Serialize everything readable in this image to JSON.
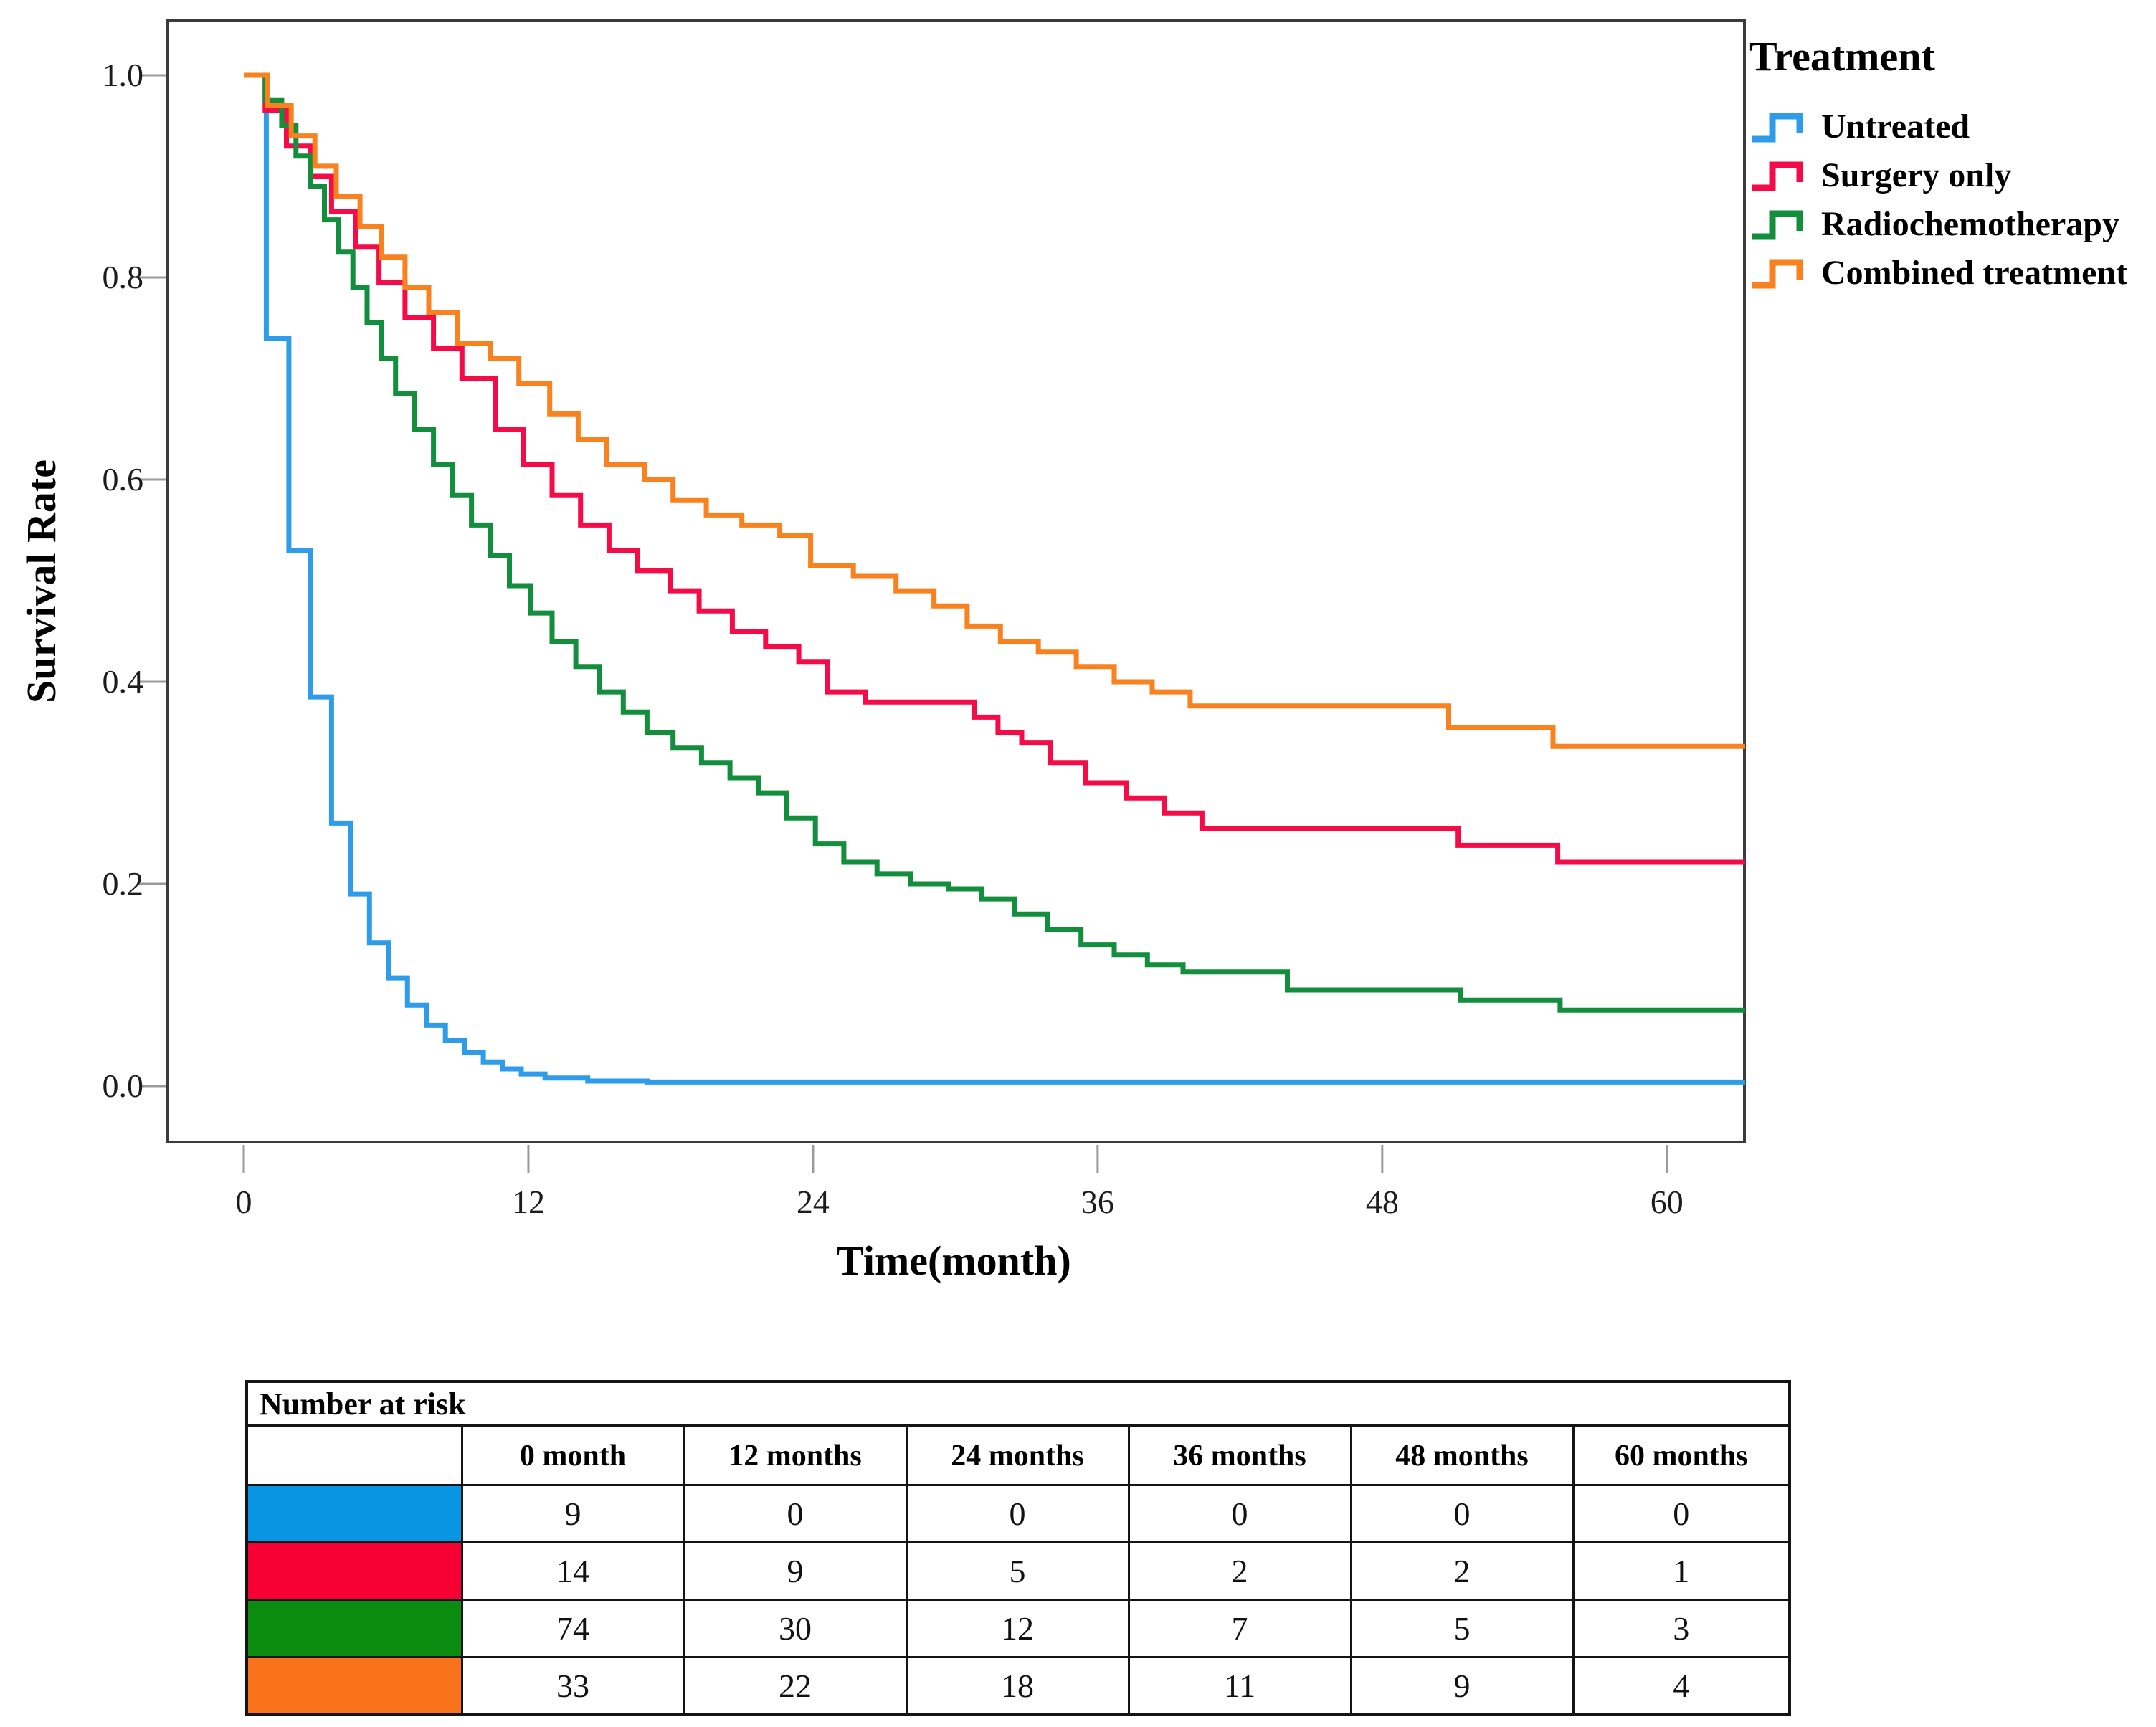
{
  "chart_data": {
    "type": "line",
    "subtype": "kaplan-meier-step-survival",
    "title": "",
    "xlabel": "Time(month)",
    "ylabel": "Survival Rate",
    "xlim": [
      -3.3,
      63.3
    ],
    "ylim": [
      -0.06,
      1.06
    ],
    "x_ticks": [
      0,
      12,
      24,
      36,
      48,
      60
    ],
    "y_ticks": [
      1.0,
      0.8,
      0.6,
      0.4,
      0.2,
      0.0
    ],
    "y_tick_labels": [
      "1.0",
      "0.8",
      "0.6",
      "0.4",
      "0.2",
      "0.0"
    ],
    "x_tick_labels": [
      "0",
      "12",
      "24",
      "36",
      "48",
      "60"
    ],
    "grid": false,
    "legend_title": "Treatment",
    "legend_position": "outside-top-right",
    "series": [
      {
        "name": "Untreated",
        "slug": "untreated",
        "color": "#2F9CE9",
        "steps": [
          [
            0,
            1.0
          ],
          [
            0.95,
            0.74
          ],
          [
            1.9,
            0.53
          ],
          [
            2.8,
            0.385
          ],
          [
            3.7,
            0.26
          ],
          [
            4.5,
            0.19
          ],
          [
            5.3,
            0.142
          ],
          [
            6.1,
            0.107
          ],
          [
            6.9,
            0.08
          ],
          [
            7.7,
            0.06
          ],
          [
            8.5,
            0.045
          ],
          [
            9.3,
            0.033
          ],
          [
            10.1,
            0.024
          ],
          [
            10.9,
            0.017
          ],
          [
            11.7,
            0.012
          ],
          [
            12.7,
            0.008
          ],
          [
            14.5,
            0.005
          ],
          [
            17.0,
            0.004
          ],
          [
            63.3,
            0.004
          ]
        ]
      },
      {
        "name": "Surgery only",
        "slug": "surgery-only",
        "color": "#F30C47",
        "steps": [
          [
            0,
            1.0
          ],
          [
            0.9,
            0.965
          ],
          [
            1.8,
            0.93
          ],
          [
            2.8,
            0.9
          ],
          [
            3.7,
            0.865
          ],
          [
            4.7,
            0.83
          ],
          [
            5.7,
            0.795
          ],
          [
            6.8,
            0.76
          ],
          [
            8.0,
            0.73
          ],
          [
            9.2,
            0.7
          ],
          [
            10.6,
            0.65
          ],
          [
            11.8,
            0.615
          ],
          [
            13.0,
            0.585
          ],
          [
            14.2,
            0.555
          ],
          [
            15.4,
            0.53
          ],
          [
            16.6,
            0.51
          ],
          [
            18.0,
            0.49
          ],
          [
            19.2,
            0.47
          ],
          [
            20.6,
            0.45
          ],
          [
            22.0,
            0.435
          ],
          [
            23.4,
            0.42
          ],
          [
            24.6,
            0.39
          ],
          [
            26.2,
            0.38
          ],
          [
            30.8,
            0.365
          ],
          [
            31.8,
            0.35
          ],
          [
            32.8,
            0.34
          ],
          [
            34.0,
            0.32
          ],
          [
            35.5,
            0.3
          ],
          [
            37.2,
            0.285
          ],
          [
            38.8,
            0.27
          ],
          [
            40.4,
            0.255
          ],
          [
            51.2,
            0.238
          ],
          [
            55.4,
            0.222
          ],
          [
            63.3,
            0.222
          ]
        ]
      },
      {
        "name": "Radiochemotherapy",
        "slug": "radiochemotherapy",
        "color": "#128E3C",
        "steps": [
          [
            0,
            1.0
          ],
          [
            0.9,
            0.975
          ],
          [
            1.6,
            0.95
          ],
          [
            2.2,
            0.92
          ],
          [
            2.8,
            0.89
          ],
          [
            3.4,
            0.857
          ],
          [
            4.0,
            0.825
          ],
          [
            4.6,
            0.79
          ],
          [
            5.2,
            0.755
          ],
          [
            5.8,
            0.72
          ],
          [
            6.4,
            0.685
          ],
          [
            7.2,
            0.65
          ],
          [
            8.0,
            0.615
          ],
          [
            8.8,
            0.585
          ],
          [
            9.6,
            0.555
          ],
          [
            10.4,
            0.525
          ],
          [
            11.2,
            0.495
          ],
          [
            12.1,
            0.468
          ],
          [
            13.0,
            0.44
          ],
          [
            14.0,
            0.415
          ],
          [
            15.0,
            0.39
          ],
          [
            16.0,
            0.37
          ],
          [
            17.0,
            0.35
          ],
          [
            18.1,
            0.335
          ],
          [
            19.3,
            0.32
          ],
          [
            20.5,
            0.305
          ],
          [
            21.7,
            0.29
          ],
          [
            22.9,
            0.265
          ],
          [
            24.1,
            0.24
          ],
          [
            25.3,
            0.222
          ],
          [
            26.7,
            0.21
          ],
          [
            28.1,
            0.2
          ],
          [
            29.7,
            0.195
          ],
          [
            31.1,
            0.185
          ],
          [
            32.5,
            0.17
          ],
          [
            33.9,
            0.155
          ],
          [
            35.3,
            0.14
          ],
          [
            36.7,
            0.13
          ],
          [
            38.1,
            0.12
          ],
          [
            39.6,
            0.113
          ],
          [
            44.0,
            0.095
          ],
          [
            51.3,
            0.085
          ],
          [
            55.5,
            0.075
          ],
          [
            63.3,
            0.075
          ]
        ]
      },
      {
        "name": "Combined treatment",
        "slug": "combined-treatment",
        "color": "#F8821F",
        "steps": [
          [
            0,
            1.0
          ],
          [
            1.0,
            0.97
          ],
          [
            2.0,
            0.94
          ],
          [
            3.0,
            0.91
          ],
          [
            3.9,
            0.88
          ],
          [
            4.9,
            0.85
          ],
          [
            5.8,
            0.82
          ],
          [
            6.8,
            0.79
          ],
          [
            7.8,
            0.765
          ],
          [
            9.0,
            0.735
          ],
          [
            10.4,
            0.72
          ],
          [
            11.6,
            0.695
          ],
          [
            12.9,
            0.665
          ],
          [
            14.1,
            0.64
          ],
          [
            15.3,
            0.615
          ],
          [
            16.9,
            0.6
          ],
          [
            18.1,
            0.58
          ],
          [
            19.5,
            0.565
          ],
          [
            21.0,
            0.555
          ],
          [
            22.6,
            0.545
          ],
          [
            23.9,
            0.515
          ],
          [
            25.7,
            0.505
          ],
          [
            27.5,
            0.49
          ],
          [
            29.1,
            0.475
          ],
          [
            30.5,
            0.455
          ],
          [
            31.9,
            0.44
          ],
          [
            33.5,
            0.43
          ],
          [
            35.1,
            0.415
          ],
          [
            36.7,
            0.4
          ],
          [
            38.3,
            0.39
          ],
          [
            39.9,
            0.376
          ],
          [
            50.8,
            0.355
          ],
          [
            55.2,
            0.336
          ],
          [
            63.3,
            0.336
          ]
        ]
      }
    ]
  },
  "legend": {
    "title": "Treatment",
    "items": [
      {
        "label": "Untreated",
        "color": "#2F9CE9"
      },
      {
        "label": "Surgery only",
        "color": "#F30C47"
      },
      {
        "label": "Radiochemotherapy",
        "color": "#128E3C"
      },
      {
        "label": "Combined treatment",
        "color": "#F8821F"
      }
    ]
  },
  "risk_table": {
    "title": "Number at risk",
    "columns": [
      "",
      "0 month",
      "12 months",
      "24 months",
      "36 months",
      "48 months",
      "60 months"
    ],
    "rows": [
      {
        "group": "Untreated",
        "slug": "untreated",
        "swatch_color": "#0895E2",
        "values": [
          "9",
          "0",
          "0",
          "0",
          "0",
          "0"
        ]
      },
      {
        "group": "Surgery only",
        "slug": "surgery-only",
        "swatch_color": "#F70033",
        "values": [
          "14",
          "9",
          "5",
          "2",
          "2",
          "1"
        ]
      },
      {
        "group": "Radiochemotherapy",
        "slug": "radiochemotherapy",
        "swatch_color": "#0B8B10",
        "values": [
          "74",
          "30",
          "12",
          "7",
          "5",
          "3"
        ]
      },
      {
        "group": "Combined treatment",
        "slug": "combined-treatment",
        "swatch_color": "#F8731C",
        "values": [
          "33",
          "22",
          "18",
          "11",
          "9",
          "4"
        ]
      }
    ]
  }
}
